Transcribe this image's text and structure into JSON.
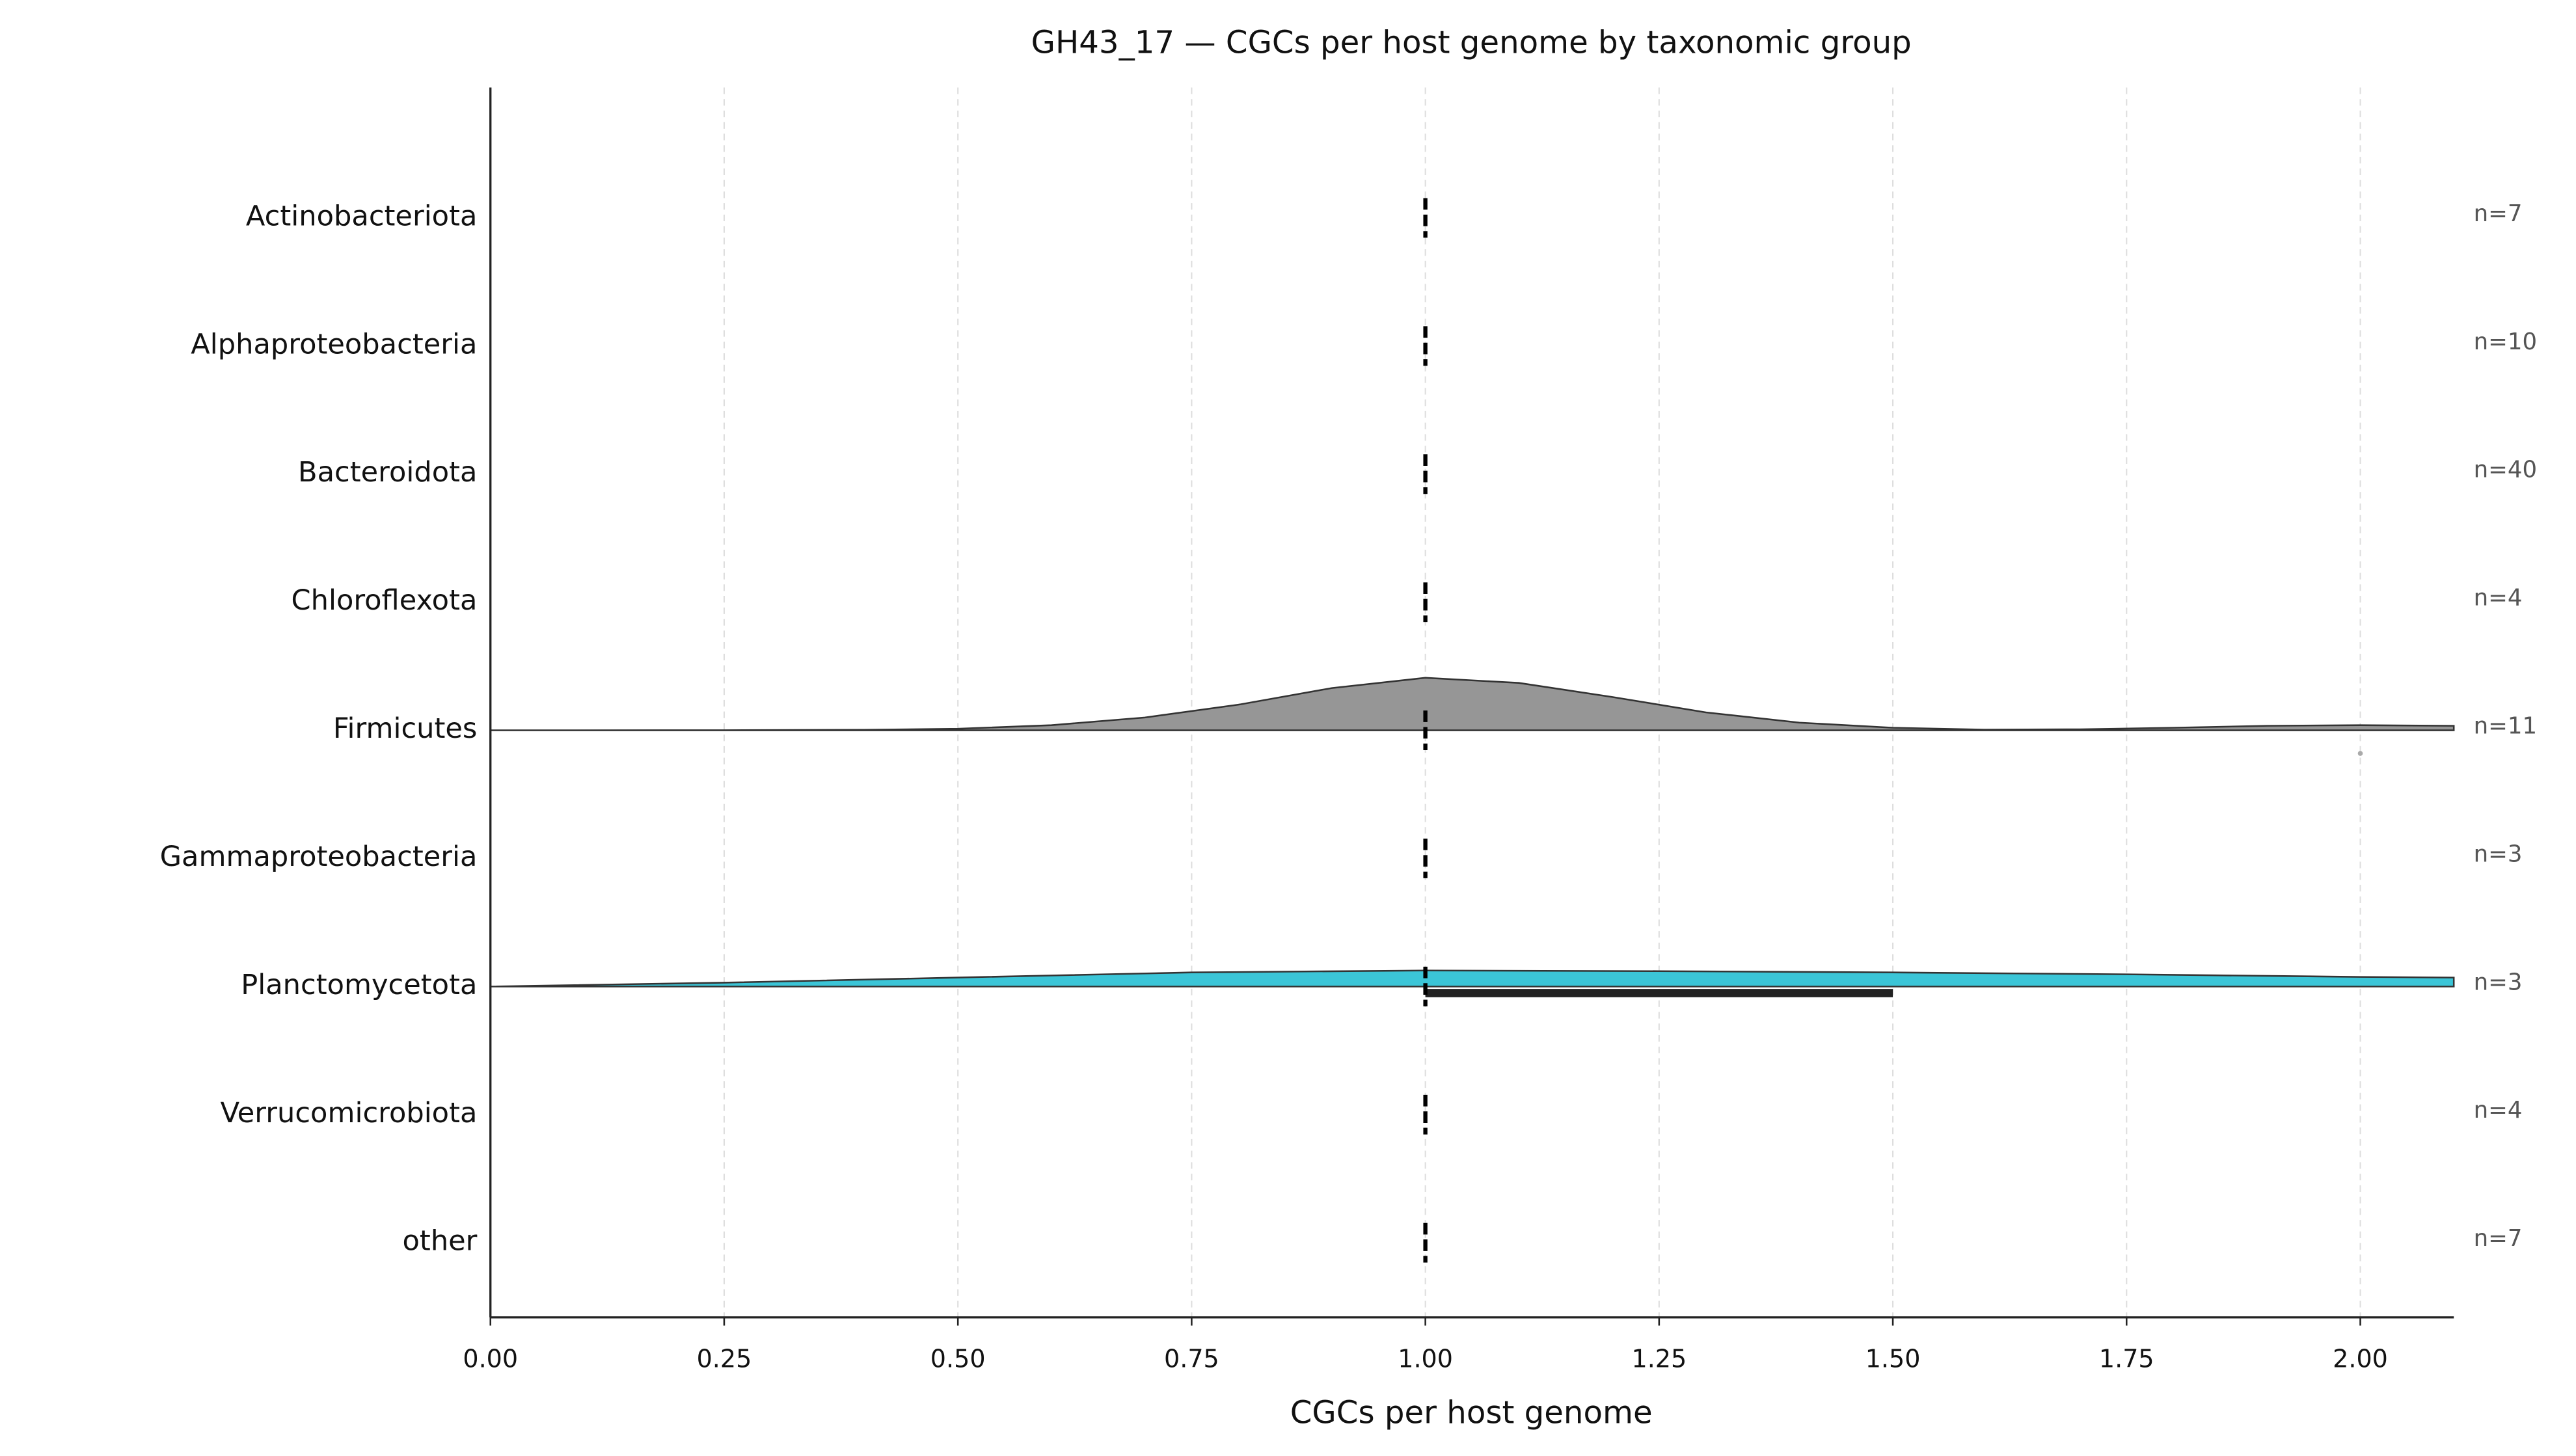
{
  "chart_data": {
    "type": "ridgeline",
    "title": "GH43_17 — CGCs per host genome by taxonomic group",
    "x_label": "CGCs per host genome",
    "xlim": [
      0,
      2.1
    ],
    "xticks": [
      {
        "value": 0,
        "label": "0.00"
      },
      {
        "value": 0.25,
        "label": "0.25"
      },
      {
        "value": 0.5,
        "label": "0.50"
      },
      {
        "value": 0.75,
        "label": "0.75"
      },
      {
        "value": 1,
        "label": "1.00"
      },
      {
        "value": 1.25,
        "label": "1.25"
      },
      {
        "value": 1.5,
        "label": "1.50"
      },
      {
        "value": 1.75,
        "label": "1.75"
      },
      {
        "value": 2,
        "label": "2.00"
      }
    ],
    "grid": true,
    "groups": [
      {
        "name": "Actinobacteriota",
        "n": 7,
        "n_label": "n=7",
        "median": 1,
        "q1": 1,
        "q3": 1,
        "outliers": []
      },
      {
        "name": "Alphaproteobacteria",
        "n": 10,
        "n_label": "n=10",
        "median": 1,
        "q1": 1,
        "q3": 1,
        "outliers": []
      },
      {
        "name": "Bacteroidota",
        "n": 40,
        "n_label": "n=40",
        "median": 1,
        "q1": 1,
        "q3": 1,
        "outliers": []
      },
      {
        "name": "Chloroflexota",
        "n": 4,
        "n_label": "n=4",
        "median": 1,
        "q1": 1,
        "q3": 1,
        "outliers": []
      },
      {
        "name": "Firmicutes",
        "n": 11,
        "n_label": "n=11",
        "median": 1,
        "q1": 1,
        "q3": 1,
        "outliers": [
          2
        ],
        "color": "#969696",
        "density": {
          "x": [
            0,
            0.25,
            0.4,
            0.5,
            0.6,
            0.7,
            0.8,
            0.9,
            1.0,
            1.1,
            1.2,
            1.3,
            1.4,
            1.5,
            1.6,
            1.7,
            1.8,
            1.9,
            2.0,
            2.1
          ],
          "y": [
            0,
            0.001,
            0.004,
            0.012,
            0.04,
            0.1,
            0.2,
            0.33,
            0.41,
            0.37,
            0.26,
            0.14,
            0.06,
            0.02,
            0.005,
            0.008,
            0.02,
            0.035,
            0.04,
            0.035
          ]
        }
      },
      {
        "name": "Gammaproteobacteria",
        "n": 3,
        "n_label": "n=3",
        "median": 1,
        "q1": 1,
        "q3": 1,
        "outliers": []
      },
      {
        "name": "Planctomycetota",
        "n": 3,
        "n_label": "n=3",
        "median": 1,
        "q1": 1,
        "q3": 1.5,
        "outliers": [],
        "color": "#3bc5d7",
        "density": {
          "x": [
            0,
            0.25,
            0.5,
            0.75,
            1.0,
            1.25,
            1.5,
            1.75,
            2.0,
            2.1
          ],
          "y": [
            0,
            0.03,
            0.07,
            0.11,
            0.125,
            0.12,
            0.11,
            0.095,
            0.075,
            0.07
          ]
        }
      },
      {
        "name": "Verrucomicrobiota",
        "n": 4,
        "n_label": "n=4",
        "median": 1,
        "q1": 1,
        "q3": 1,
        "outliers": []
      },
      {
        "name": "other",
        "n": 7,
        "n_label": "n=7",
        "median": 1,
        "q1": 1,
        "q3": 1,
        "outliers": []
      }
    ]
  }
}
